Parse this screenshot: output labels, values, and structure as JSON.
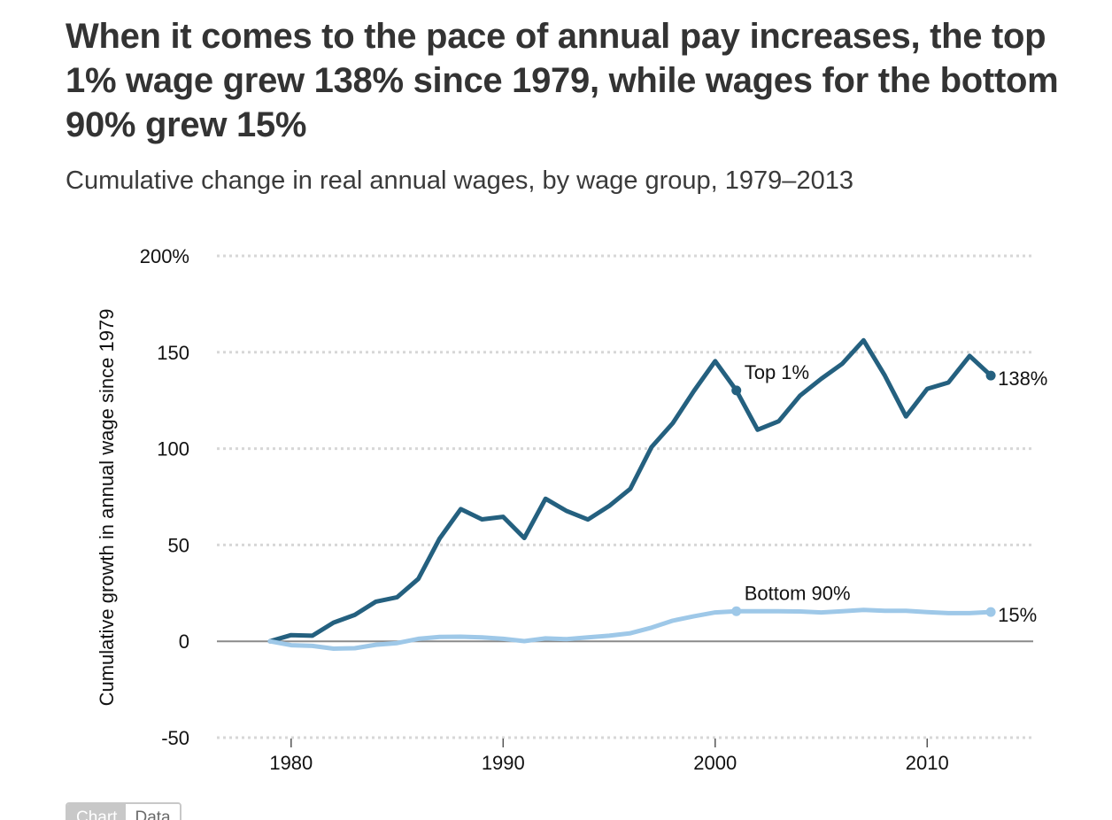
{
  "header": {
    "title": "When it comes to the pace of annual pay increases, the top 1% wage grew 138% since 1979, while wages for the bottom 90% grew 15%",
    "subtitle": "Cumulative change in real annual wages, by wage group, 1979–2013"
  },
  "chart_data": {
    "type": "line",
    "title": "When it comes to the pace of annual pay increases, the top 1% wage grew 138% since 1979, while wages for the bottom 90% grew 15%",
    "subtitle": "Cumulative change in real annual wages, by wage group, 1979–2013",
    "xlabel": "",
    "ylabel": "Cumulative growth in annual wage since 1979",
    "xlim": [
      1976.5,
      2015
    ],
    "ylim": [
      -50,
      200
    ],
    "x_ticks": [
      1980,
      1990,
      2000,
      2010
    ],
    "y_ticks": [
      -50,
      0,
      50,
      100,
      150,
      200
    ],
    "y_tick_labels": [
      "-50",
      "0",
      "50",
      "100",
      "150",
      "200%"
    ],
    "x_tick_labels": [
      "1980",
      "1990",
      "2000",
      "2010"
    ],
    "grid": "horizontal dotted",
    "x": [
      1979,
      1980,
      1981,
      1982,
      1983,
      1984,
      1985,
      1986,
      1987,
      1988,
      1989,
      1990,
      1991,
      1992,
      1993,
      1994,
      1995,
      1996,
      1997,
      1998,
      1999,
      2000,
      2001,
      2002,
      2003,
      2004,
      2005,
      2006,
      2007,
      2008,
      2009,
      2010,
      2011,
      2012,
      2013
    ],
    "series": [
      {
        "name": "Top 1%",
        "color": "#24607f",
        "end_label": "138%",
        "label_year": 2001,
        "values": [
          0,
          3.2,
          2.9,
          9.7,
          13.7,
          20.6,
          22.9,
          32.4,
          53.3,
          68.6,
          63.3,
          64.6,
          53.6,
          74.0,
          67.6,
          63.2,
          70.2,
          79.2,
          100.8,
          113.2,
          129.9,
          145.4,
          130.2,
          109.8,
          114.2,
          127.5,
          136.2,
          144.1,
          156.2,
          137.9,
          116.7,
          131.0,
          134.3,
          148.1,
          137.9
        ]
      },
      {
        "name": "Bottom 90%",
        "color": "#9ec8e8",
        "end_label": "15%",
        "label_year": 2001,
        "values": [
          0,
          -2.0,
          -2.4,
          -3.8,
          -3.6,
          -1.8,
          -0.9,
          1.3,
          2.3,
          2.4,
          2.0,
          1.3,
          0.1,
          1.5,
          1.1,
          2.0,
          2.9,
          4.2,
          7.1,
          10.7,
          13.0,
          15.0,
          15.6,
          15.6,
          15.6,
          15.5,
          15.0,
          15.6,
          16.3,
          15.8,
          15.8,
          15.1,
          14.6,
          14.6,
          15.2
        ]
      }
    ]
  },
  "controls": {
    "tabs": [
      {
        "label": "Chart",
        "active": true
      },
      {
        "label": "Data",
        "active": false
      }
    ]
  },
  "colors": {
    "top1": "#24607f",
    "bottom90": "#9ec8e8",
    "grid": "#d7d7d7",
    "zero_line": "#8a8a8a"
  }
}
